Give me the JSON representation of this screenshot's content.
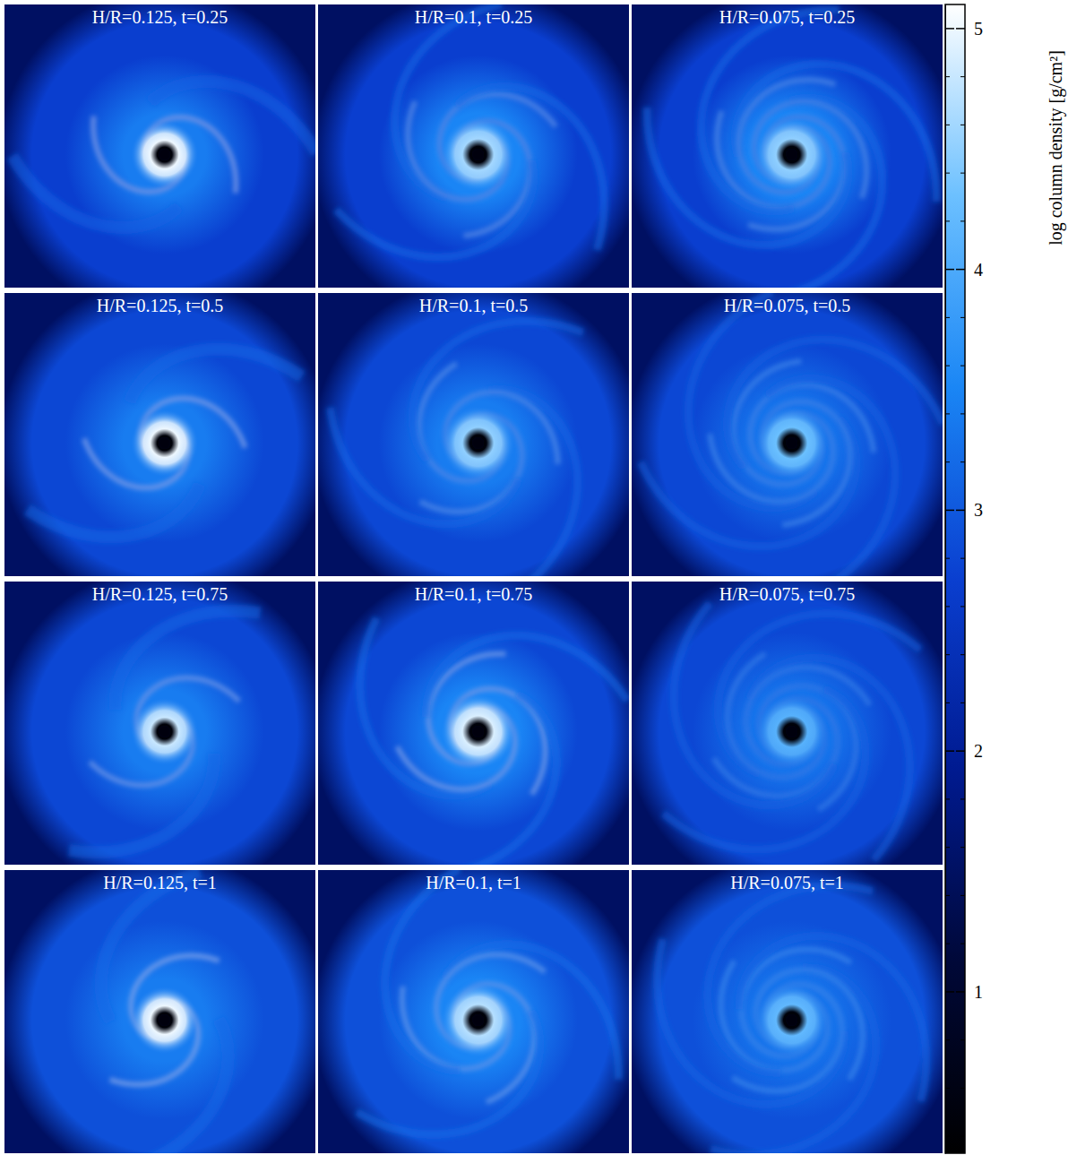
{
  "chart_data": {
    "type": "image_grid",
    "panels": [
      {
        "title": "H/R=0.125, t=0.25",
        "background": 1.5,
        "outer_disk": 2.7,
        "inner_disk": 3.4,
        "peak": 5.0,
        "hole": 0.5,
        "arms": 2
      },
      {
        "title": "H/R=0.1, t=0.25",
        "background": 1.5,
        "outer_disk": 2.7,
        "inner_disk": 3.5,
        "peak": 4.6,
        "hole": 0.5,
        "arms": 3
      },
      {
        "title": "H/R=0.075, t=0.25",
        "background": 1.5,
        "outer_disk": 2.7,
        "inner_disk": 3.5,
        "peak": 4.5,
        "hole": 0.5,
        "arms": 4
      },
      {
        "title": "H/R=0.125, t=0.5",
        "background": 1.5,
        "outer_disk": 2.8,
        "inner_disk": 3.4,
        "peak": 5.0,
        "hole": 0.5,
        "arms": 2
      },
      {
        "title": "H/R=0.1, t=0.5",
        "background": 1.5,
        "outer_disk": 2.8,
        "inner_disk": 3.4,
        "peak": 4.5,
        "hole": 0.5,
        "arms": 3
      },
      {
        "title": "H/R=0.075, t=0.5",
        "background": 1.5,
        "outer_disk": 2.8,
        "inner_disk": 3.3,
        "peak": 4.3,
        "hole": 0.5,
        "arms": 4
      },
      {
        "title": "H/R=0.125, t=0.75",
        "background": 1.5,
        "outer_disk": 2.8,
        "inner_disk": 3.4,
        "peak": 4.8,
        "hole": 0.5,
        "arms": 2
      },
      {
        "title": "H/R=0.1, t=0.75",
        "background": 1.5,
        "outer_disk": 2.8,
        "inner_disk": 3.5,
        "peak": 4.9,
        "hole": 0.5,
        "arms": 3
      },
      {
        "title": "H/R=0.075, t=0.75",
        "background": 1.5,
        "outer_disk": 2.8,
        "inner_disk": 3.3,
        "peak": 4.1,
        "hole": 0.5,
        "arms": 4
      },
      {
        "title": "H/R=0.125, t=1",
        "background": 1.5,
        "outer_disk": 2.9,
        "inner_disk": 3.4,
        "peak": 5.0,
        "hole": 0.5,
        "arms": 2
      },
      {
        "title": "H/R=0.1, t=1",
        "background": 1.5,
        "outer_disk": 2.9,
        "inner_disk": 3.5,
        "peak": 4.7,
        "hole": 0.5,
        "arms": 3
      },
      {
        "title": "H/R=0.075, t=1",
        "background": 1.5,
        "outer_disk": 2.9,
        "inner_disk": 3.3,
        "peak": 4.2,
        "hole": 0.5,
        "arms": 4
      }
    ],
    "colorbar": {
      "label": "log column density [g/cm²]",
      "range": [
        0.33,
        5.1
      ],
      "ticks": [
        1,
        2,
        3,
        4,
        5
      ],
      "minor_ticks": [
        0.4,
        0.6,
        0.8,
        1.2,
        1.4,
        1.6,
        1.8,
        2.2,
        2.4,
        2.6,
        2.8,
        3.2,
        3.4,
        3.6,
        3.8,
        4.2,
        4.4,
        4.6,
        4.8
      ]
    }
  }
}
